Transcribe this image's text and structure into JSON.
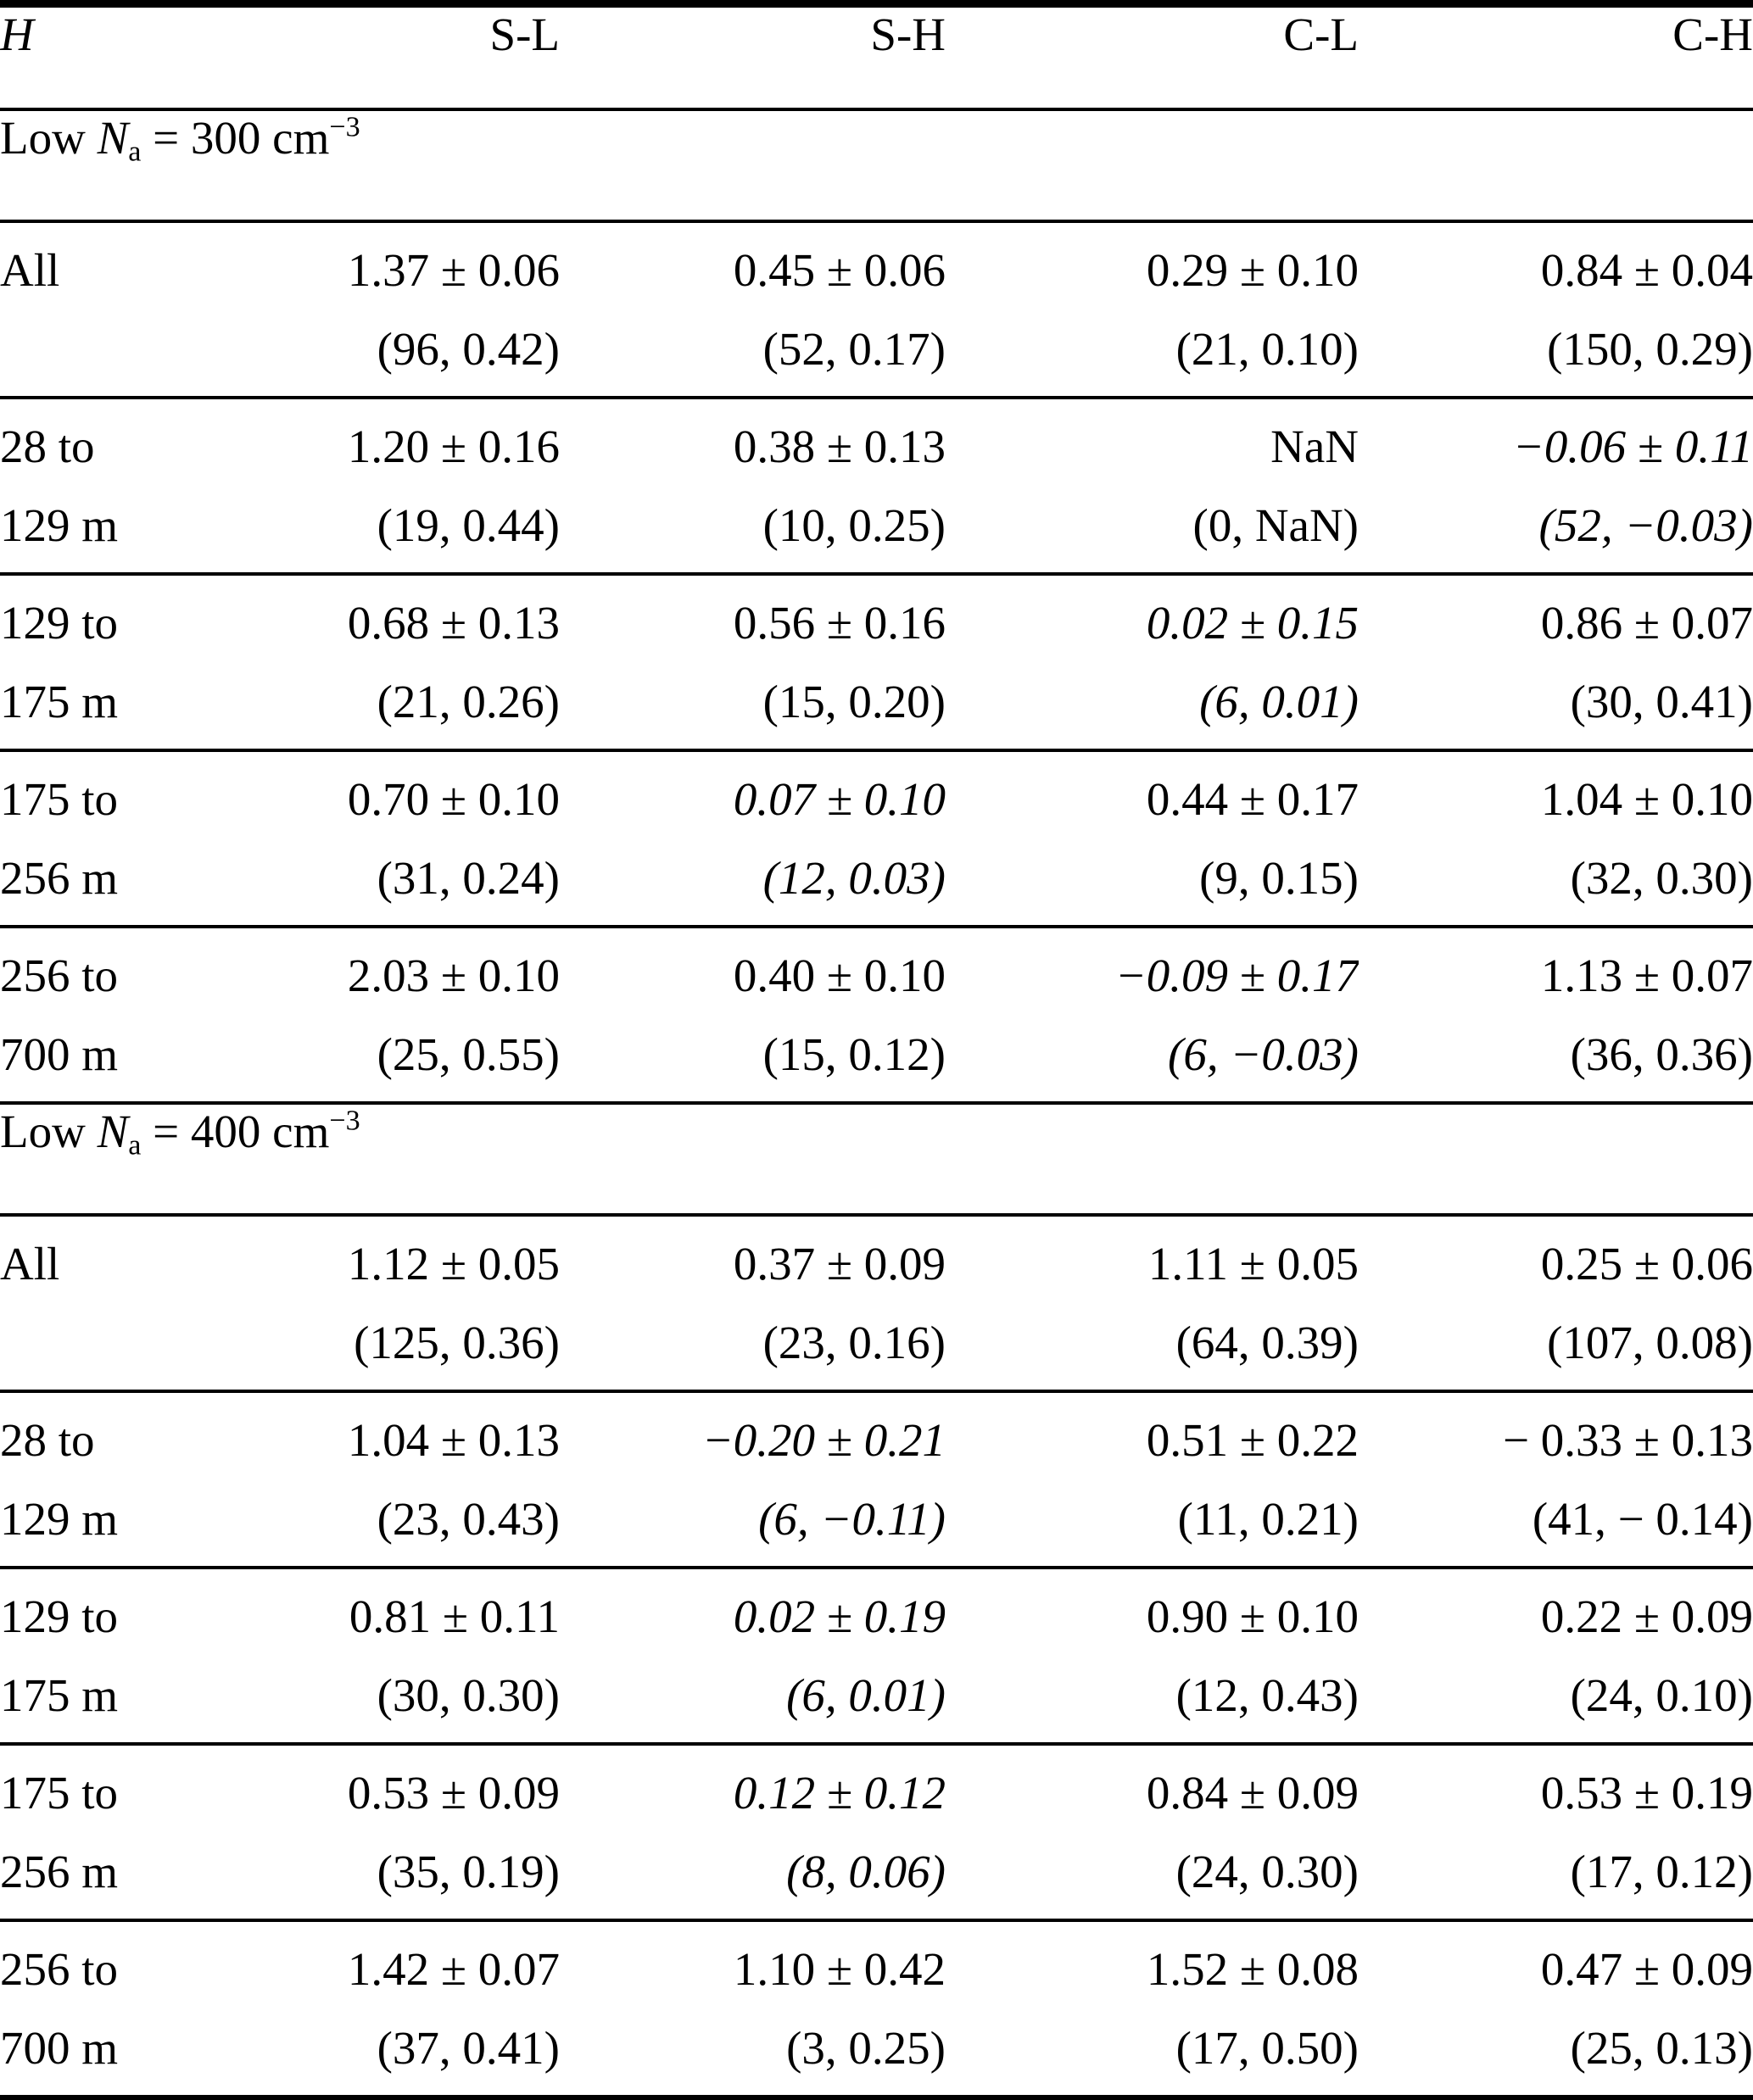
{
  "table": {
    "columns": [
      "H",
      "S-L",
      "S-H",
      "C-L",
      "C-H"
    ],
    "sections": [
      {
        "title": {
          "pre": "Low ",
          "sym": "N",
          "sub": "a",
          "rest": " = 300 cm",
          "exp": "−3"
        },
        "rows": [
          {
            "label": [
              "All"
            ],
            "cells": [
              {
                "value": "1.37 ± 0.06",
                "stats": "(96, 0.42)",
                "italic": false
              },
              {
                "value": "0.45 ± 0.06",
                "stats": "(52, 0.17)",
                "italic": false
              },
              {
                "value": "0.29 ± 0.10",
                "stats": "(21, 0.10)",
                "italic": false
              },
              {
                "value": "0.84 ± 0.04",
                "stats": "(150, 0.29)",
                "italic": false
              }
            ]
          },
          {
            "label": [
              "28 to",
              "129 m"
            ],
            "cells": [
              {
                "value": "1.20 ± 0.16",
                "stats": "(19, 0.44)",
                "italic": false
              },
              {
                "value": "0.38 ± 0.13",
                "stats": "(10, 0.25)",
                "italic": false
              },
              {
                "value": "NaN",
                "stats": "(0, NaN)",
                "italic": false
              },
              {
                "value": "−0.06 ± 0.11",
                "stats": "(52, −0.03)",
                "italic": true
              }
            ]
          },
          {
            "label": [
              "129 to",
              "175 m"
            ],
            "cells": [
              {
                "value": "0.68 ± 0.13",
                "stats": "(21, 0.26)",
                "italic": false
              },
              {
                "value": "0.56 ± 0.16",
                "stats": "(15, 0.20)",
                "italic": false
              },
              {
                "value": "0.02 ± 0.15",
                "stats": "(6, 0.01)",
                "italic": true
              },
              {
                "value": "0.86 ± 0.07",
                "stats": "(30, 0.41)",
                "italic": false
              }
            ]
          },
          {
            "label": [
              "175 to",
              "256 m"
            ],
            "cells": [
              {
                "value": "0.70 ± 0.10",
                "stats": "(31, 0.24)",
                "italic": false
              },
              {
                "value": "0.07 ± 0.10",
                "stats": "(12, 0.03)",
                "italic": true
              },
              {
                "value": "0.44 ± 0.17",
                "stats": "(9, 0.15)",
                "italic": false
              },
              {
                "value": "1.04 ± 0.10",
                "stats": "(32, 0.30)",
                "italic": false
              }
            ]
          },
          {
            "label": [
              "256 to",
              "700 m"
            ],
            "cells": [
              {
                "value": "2.03 ± 0.10",
                "stats": "(25, 0.55)",
                "italic": false
              },
              {
                "value": "0.40 ± 0.10",
                "stats": "(15, 0.12)",
                "italic": false
              },
              {
                "value": "−0.09 ± 0.17",
                "stats": "(6, −0.03)",
                "italic": true
              },
              {
                "value": "1.13 ± 0.07",
                "stats": "(36, 0.36)",
                "italic": false
              }
            ]
          }
        ]
      },
      {
        "title": {
          "pre": "Low ",
          "sym": "N",
          "sub": "a",
          "rest": " = 400 cm",
          "exp": "−3"
        },
        "rows": [
          {
            "label": [
              "All"
            ],
            "cells": [
              {
                "value": "1.12 ± 0.05",
                "stats": "(125, 0.36)",
                "italic": false
              },
              {
                "value": "0.37 ± 0.09",
                "stats": "(23, 0.16)",
                "italic": false
              },
              {
                "value": "1.11 ± 0.05",
                "stats": "(64, 0.39)",
                "italic": false
              },
              {
                "value": "0.25 ± 0.06",
                "stats": "(107, 0.08)",
                "italic": false
              }
            ]
          },
          {
            "label": [
              "28 to",
              "129 m"
            ],
            "cells": [
              {
                "value": "1.04 ± 0.13",
                "stats": "(23, 0.43)",
                "italic": false
              },
              {
                "value": "−0.20 ± 0.21",
                "stats": "(6, −0.11)",
                "italic": true
              },
              {
                "value": "0.51 ± 0.22",
                "stats": "(11, 0.21)",
                "italic": false
              },
              {
                "value": "− 0.33 ± 0.13",
                "stats": "(41, − 0.14)",
                "italic": false
              }
            ]
          },
          {
            "label": [
              "129 to",
              "175 m"
            ],
            "cells": [
              {
                "value": "0.81 ± 0.11",
                "stats": "(30, 0.30)",
                "italic": false
              },
              {
                "value": "0.02 ± 0.19",
                "stats": "(6, 0.01)",
                "italic": true
              },
              {
                "value": "0.90 ± 0.10",
                "stats": "(12, 0.43)",
                "italic": false
              },
              {
                "value": "0.22 ± 0.09",
                "stats": "(24, 0.10)",
                "italic": false
              }
            ]
          },
          {
            "label": [
              "175 to",
              "256 m"
            ],
            "cells": [
              {
                "value": "0.53 ± 0.09",
                "stats": "(35, 0.19)",
                "italic": false
              },
              {
                "value": "0.12 ± 0.12",
                "stats": "(8, 0.06)",
                "italic": true
              },
              {
                "value": "0.84 ± 0.09",
                "stats": "(24, 0.30)",
                "italic": false
              },
              {
                "value": "0.53 ± 0.19",
                "stats": "(17, 0.12)",
                "italic": false
              }
            ]
          },
          {
            "label": [
              "256 to",
              "700 m"
            ],
            "cells": [
              {
                "value": "1.42 ± 0.07",
                "stats": "(37, 0.41)",
                "italic": false
              },
              {
                "value": "1.10 ± 0.42",
                "stats": "(3, 0.25)",
                "italic": false
              },
              {
                "value": "1.52 ± 0.08",
                "stats": "(17, 0.50)",
                "italic": false
              },
              {
                "value": "0.47 ± 0.09",
                "stats": "(25, 0.13)",
                "italic": false
              }
            ]
          }
        ]
      }
    ]
  }
}
